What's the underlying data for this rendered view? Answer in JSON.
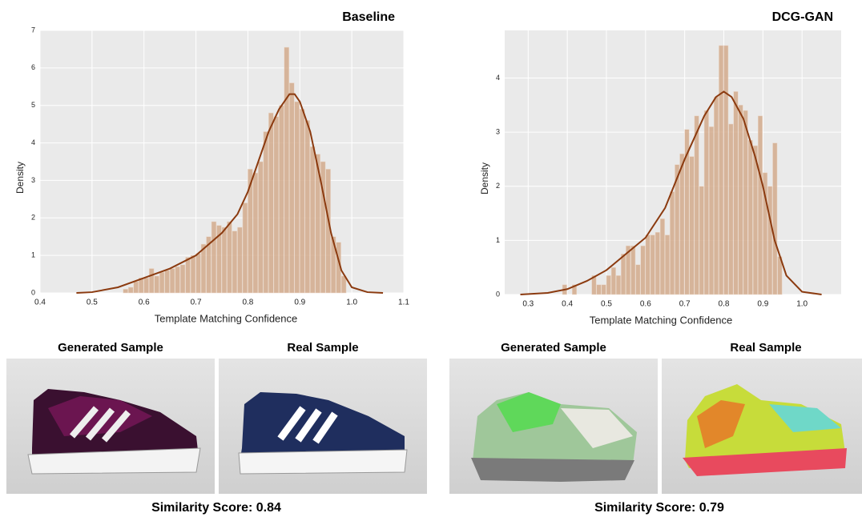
{
  "chart_data": [
    {
      "type": "histogram",
      "title": "Baseline",
      "xlabel": "Template Matching Confidence",
      "ylabel": "Density",
      "bins": [
        0.56,
        0.57,
        0.58,
        0.59,
        0.6,
        0.61,
        0.62,
        0.63,
        0.64,
        0.65,
        0.66,
        0.67,
        0.68,
        0.69,
        0.7,
        0.71,
        0.72,
        0.73,
        0.74,
        0.75,
        0.76,
        0.77,
        0.78,
        0.79,
        0.8,
        0.81,
        0.82,
        0.83,
        0.84,
        0.85,
        0.86,
        0.87,
        0.88,
        0.89,
        0.9,
        0.91,
        0.92,
        0.93,
        0.94,
        0.95,
        0.96,
        0.97,
        0.98,
        0.99
      ],
      "values": [
        0.1,
        0.15,
        0.3,
        0.4,
        0.4,
        0.65,
        0.45,
        0.55,
        0.6,
        0.65,
        0.7,
        0.75,
        0.95,
        1.0,
        1.05,
        1.3,
        1.5,
        1.9,
        1.8,
        1.75,
        1.9,
        1.65,
        1.75,
        2.4,
        3.3,
        3.2,
        3.5,
        4.3,
        4.8,
        4.7,
        5.0,
        6.55,
        5.6,
        5.1,
        4.9,
        4.6,
        3.9,
        3.7,
        3.5,
        3.3,
        1.5,
        1.35,
        0.45
      ],
      "color": "#d2aa8c",
      "kde": {
        "x": [
          0.47,
          0.5,
          0.55,
          0.6,
          0.65,
          0.7,
          0.75,
          0.78,
          0.8,
          0.82,
          0.84,
          0.86,
          0.88,
          0.89,
          0.9,
          0.92,
          0.94,
          0.96,
          0.98,
          1.0,
          1.03,
          1.06
        ],
        "values": [
          0,
          0.02,
          0.15,
          0.4,
          0.65,
          1.0,
          1.6,
          2.1,
          2.7,
          3.5,
          4.3,
          4.9,
          5.3,
          5.3,
          5.1,
          4.3,
          3.0,
          1.6,
          0.6,
          0.15,
          0.02,
          0
        ],
        "color": "#8b3a0f"
      },
      "xlim": [
        0.4,
        1.1
      ],
      "ylim": [
        0,
        7
      ],
      "xticks": [
        0.4,
        0.5,
        0.6,
        0.7,
        0.8,
        0.9,
        {
          "value": 1,
          "label": "1.0"
        },
        1.1
      ],
      "yticks": [
        0,
        1,
        2,
        3,
        4,
        5,
        6,
        7
      ],
      "grid": true
    },
    {
      "type": "histogram",
      "title": "DCG-GAN",
      "xlabel": "Template Matching Confidence",
      "ylabel": "Density",
      "bins": [
        0.3875,
        0.4,
        0.4125,
        0.425,
        0.4375,
        0.45,
        0.4625,
        0.475,
        0.4875,
        0.5,
        0.5125,
        0.525,
        0.5375,
        0.55,
        0.5625,
        0.575,
        0.5875,
        0.6,
        0.6125,
        0.625,
        0.6375,
        0.65,
        0.6625,
        0.675,
        0.6875,
        0.7,
        0.7125,
        0.725,
        0.7375,
        0.75,
        0.7625,
        0.775,
        0.7875,
        0.8,
        0.8125,
        0.825,
        0.8375,
        0.85,
        0.8625,
        0.875,
        0.8875,
        0.9,
        0.9125,
        0.925,
        0.9375,
        0.95
      ],
      "values": [
        0.18,
        0,
        0.18,
        0,
        0,
        0,
        0.35,
        0.18,
        0.18,
        0.35,
        0.5,
        0.35,
        0.75,
        0.9,
        0.9,
        0.55,
        0.9,
        1.1,
        1.1,
        1.15,
        1.4,
        1.1,
        1.9,
        2.4,
        2.6,
        3.05,
        2.55,
        3.3,
        2.0,
        3.4,
        3.1,
        3.65,
        4.6,
        4.6,
        3.15,
        3.75,
        3.5,
        3.4,
        2.85,
        2.75,
        3.3,
        2.25,
        2.0,
        2.8,
        0.7
      ],
      "color": "#d2aa8c",
      "kde": {
        "x": [
          0.28,
          0.35,
          0.4,
          0.45,
          0.5,
          0.55,
          0.6,
          0.65,
          0.7,
          0.75,
          0.78,
          0.8,
          0.82,
          0.85,
          0.88,
          0.9,
          0.93,
          0.96,
          1.0,
          1.05
        ],
        "values": [
          0,
          0.03,
          0.1,
          0.25,
          0.45,
          0.75,
          1.05,
          1.6,
          2.5,
          3.3,
          3.65,
          3.75,
          3.65,
          3.25,
          2.55,
          2.0,
          1.0,
          0.35,
          0.05,
          0
        ],
        "color": "#8b3a0f"
      },
      "xlim": [
        0.24,
        1.1
      ],
      "ylim": [
        0,
        4.88
      ],
      "xticks": [
        0.3,
        0.4,
        0.5,
        0.6,
        0.7,
        0.8,
        0.9,
        {
          "value": 1,
          "label": "1.0"
        }
      ],
      "yticks": [
        0,
        1,
        2,
        3,
        4
      ],
      "grid": true
    }
  ],
  "samples": [
    {
      "generated_label": "Generated Sample",
      "real_label": "Real Sample",
      "score_label": "Similarity Score: 0.84"
    },
    {
      "generated_label": "Generated Sample",
      "real_label": "Real Sample",
      "score_label": "Similarity Score: 0.79"
    }
  ]
}
